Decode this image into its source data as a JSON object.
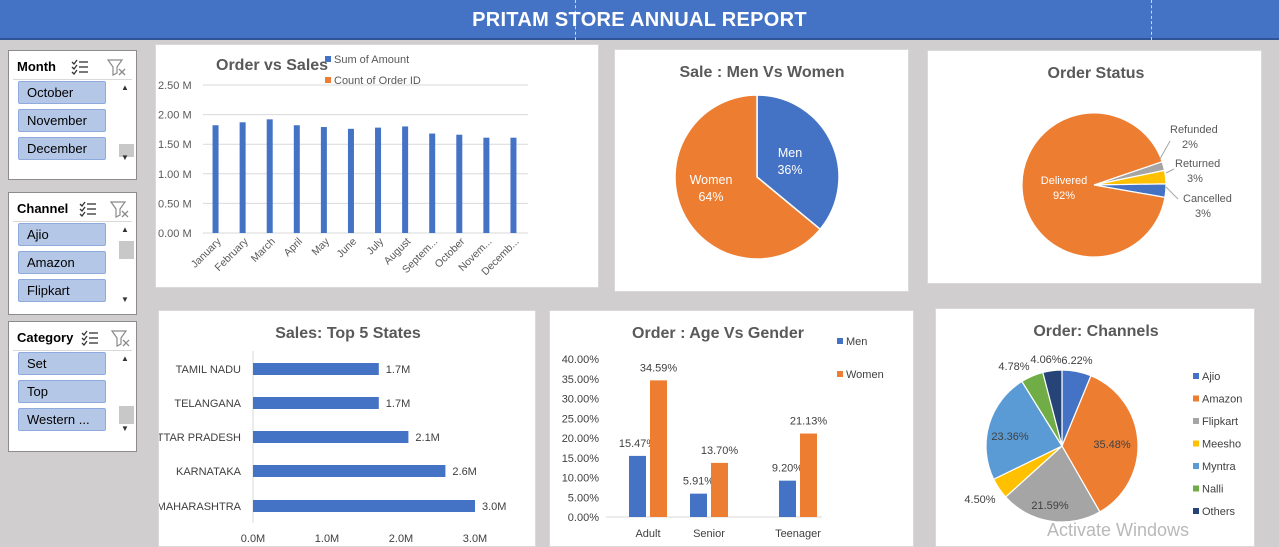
{
  "report_title": "PRITAM  STORE ANNUAL REPORT",
  "colors": {
    "header": "#4472c4",
    "blue": "#4472c4",
    "orange": "#ed7d31",
    "gray": "#a5a5a5",
    "yellow": "#ffc000",
    "lightblue": "#5b9bd5",
    "green": "#70ad47",
    "navy": "#264478"
  },
  "slicers": [
    {
      "title": "Month",
      "items": [
        "October",
        "November",
        "December"
      ]
    },
    {
      "title": "Channel",
      "items": [
        "Ajio",
        "Amazon",
        "Flipkart"
      ]
    },
    {
      "title": "Category",
      "items": [
        "Set",
        "Top",
        "Western ..."
      ]
    }
  ],
  "watermark": "Activate Windows",
  "chart_data": [
    {
      "type": "bar",
      "title": "Order vs Sales",
      "categories": [
        "January",
        "February",
        "March",
        "April",
        "May",
        "June",
        "July",
        "August",
        "Septem...",
        "October",
        "Novem...",
        "Decemb..."
      ],
      "series": [
        {
          "name": "Sum of Amount",
          "values": [
            1.82,
            1.87,
            1.92,
            1.82,
            1.79,
            1.76,
            1.78,
            1.8,
            1.68,
            1.66,
            1.61,
            1.61
          ]
        },
        {
          "name": "Count of Order ID",
          "values": [
            0,
            0,
            0,
            0,
            0,
            0,
            0,
            0,
            0,
            0,
            0,
            0
          ]
        }
      ],
      "yticks": [
        "0.00 M",
        "0.50 M",
        "1.00 M",
        "1.50 M",
        "2.00 M",
        "2.50 M"
      ],
      "ylim": [
        0,
        2.5
      ],
      "grid": true,
      "legend": "top"
    },
    {
      "type": "pie",
      "title": "Sale : Men Vs Women",
      "slices": [
        {
          "label": "Men",
          "value": 36,
          "text": "36%"
        },
        {
          "label": "Women",
          "value": 64,
          "text": "64%"
        }
      ]
    },
    {
      "type": "pie",
      "title": "Order Status",
      "slices": [
        {
          "label": "Refunded",
          "value": 2,
          "text": "2%"
        },
        {
          "label": "Returned",
          "value": 3,
          "text": "3%"
        },
        {
          "label": "Cancelled",
          "value": 3,
          "text": "3%"
        },
        {
          "label": "Delivered",
          "value": 92,
          "text": "92%"
        }
      ]
    },
    {
      "type": "bar",
      "orientation": "horizontal",
      "title": "Sales: Top 5 States",
      "categories": [
        "TAMIL NADU",
        "TELANGANA",
        "UTTAR PRADESH",
        "KARNATAKA",
        "MAHARASHTRA"
      ],
      "values": [
        1.7,
        1.7,
        2.1,
        2.6,
        3.0
      ],
      "value_labels": [
        "1.7M",
        "1.7M",
        "2.1M",
        "2.6M",
        "3.0M"
      ],
      "xticks": [
        "0.0M",
        "1.0M",
        "2.0M",
        "3.0M"
      ],
      "xlim": [
        0,
        3.0
      ]
    },
    {
      "type": "bar",
      "title": "Order : Age Vs Gender",
      "categories": [
        "Adult",
        "Senior",
        "Teenager"
      ],
      "series": [
        {
          "name": "Men",
          "values": [
            15.47,
            5.91,
            9.2
          ],
          "labels": [
            "15.47%",
            "5.91%",
            "9.20%"
          ]
        },
        {
          "name": "Women",
          "values": [
            34.59,
            13.7,
            21.13
          ],
          "labels": [
            "34.59%",
            "13.70%",
            "21.13%"
          ]
        }
      ],
      "yticks": [
        "0.00%",
        "5.00%",
        "10.00%",
        "15.00%",
        "20.00%",
        "25.00%",
        "30.00%",
        "35.00%",
        "40.00%"
      ],
      "ylim": [
        0,
        40
      ],
      "legend": "right"
    },
    {
      "type": "pie",
      "title": "Order: Channels",
      "slices": [
        {
          "label": "Ajio",
          "value": 6.22,
          "text": "6.22%"
        },
        {
          "label": "Amazon",
          "value": 35.48,
          "text": "35.48%"
        },
        {
          "label": "Flipkart",
          "value": 21.59,
          "text": "21.59%"
        },
        {
          "label": "Meesho",
          "value": 4.5,
          "text": "4.50%"
        },
        {
          "label": "Myntra",
          "value": 23.36,
          "text": "23.36%"
        },
        {
          "label": "Nalli",
          "value": 4.78,
          "text": "4.78%"
        },
        {
          "label": "Others",
          "value": 4.06,
          "text": "4.06%"
        }
      ],
      "legend": "right"
    }
  ]
}
